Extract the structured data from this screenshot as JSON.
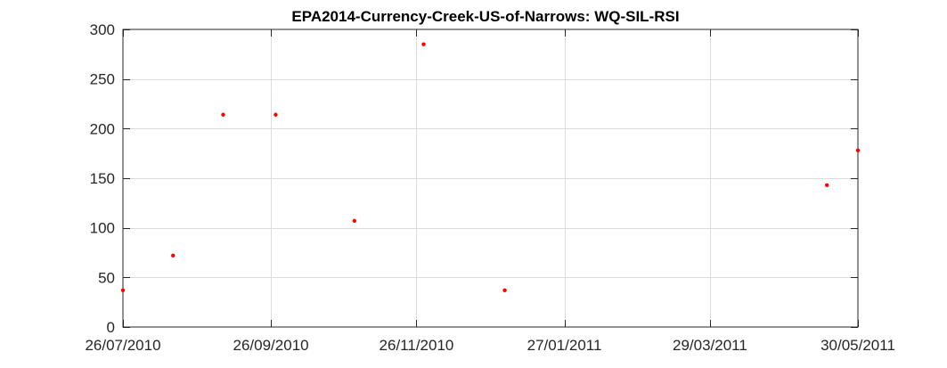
{
  "chart_data": {
    "type": "scatter",
    "title": "EPA2014-Currency-Creek-US-of-Narrows: WQ-SIL-RSI",
    "xlabel": "",
    "ylabel": "",
    "x_axis_kind": "date",
    "xlim": [
      "2010-07-26",
      "2011-05-30"
    ],
    "ylim": [
      0,
      300
    ],
    "grid": true,
    "legend": "none",
    "marker_color": "#ff0000",
    "x_ticks": [
      {
        "date": "2010-07-26",
        "label": "26/07/2010"
      },
      {
        "date": "2010-09-26",
        "label": "26/09/2010"
      },
      {
        "date": "2010-11-26",
        "label": "26/11/2010"
      },
      {
        "date": "2011-01-27",
        "label": "27/01/2011"
      },
      {
        "date": "2011-03-29",
        "label": "29/03/2011"
      },
      {
        "date": "2011-05-30",
        "label": "30/05/2011"
      }
    ],
    "y_ticks": [
      0,
      50,
      100,
      150,
      200,
      250,
      300
    ],
    "series": [
      {
        "points": [
          {
            "x": "2010-07-26",
            "y": 37
          },
          {
            "x": "2010-08-16",
            "y": 72
          },
          {
            "x": "2010-09-06",
            "y": 214
          },
          {
            "x": "2010-09-28",
            "y": 214
          },
          {
            "x": "2010-10-31",
            "y": 107
          },
          {
            "x": "2010-11-29",
            "y": 285
          },
          {
            "x": "2011-01-02",
            "y": 37
          },
          {
            "x": "2011-05-17",
            "y": 143
          },
          {
            "x": "2011-05-30",
            "y": 178
          }
        ]
      }
    ]
  }
}
